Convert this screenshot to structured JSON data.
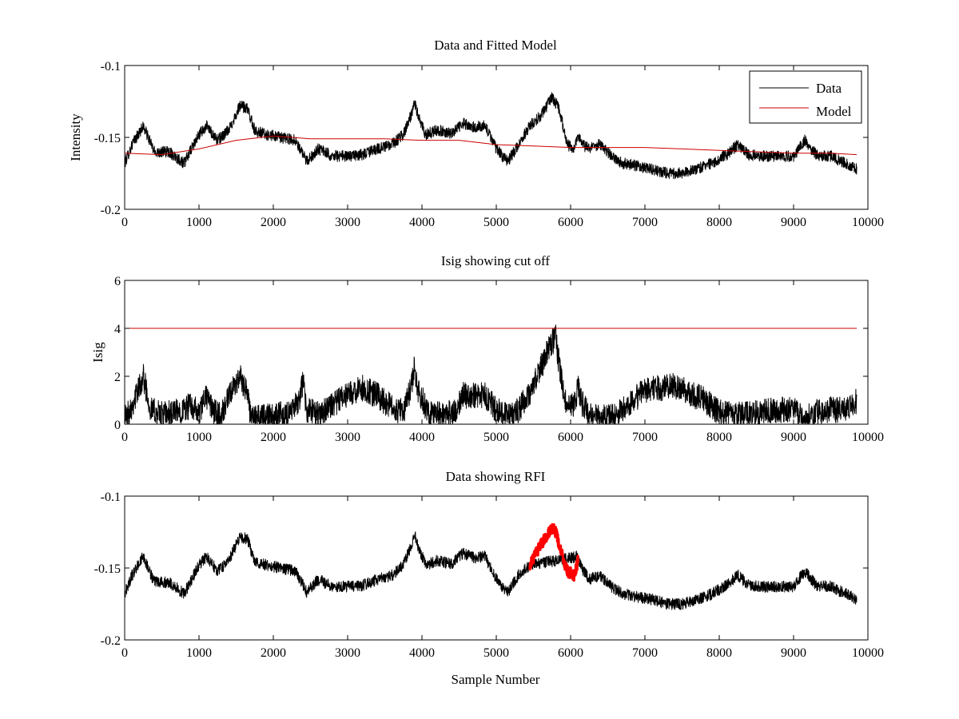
{
  "chart_data": [
    {
      "type": "line",
      "title": "Data and Fitted Model",
      "xlabel": "",
      "ylabel": "Intensity",
      "xlim": [
        0,
        10000
      ],
      "ylim": [
        -0.2,
        -0.1
      ],
      "x_ticks": [
        0,
        1000,
        2000,
        3000,
        4000,
        5000,
        6000,
        7000,
        8000,
        9000,
        10000
      ],
      "x_tick_labels": [
        "0",
        "1000",
        "2000",
        "3000",
        "4000",
        "5000",
        "6000",
        "7000",
        "8000",
        "9000",
        "10000"
      ],
      "y_ticks": [
        -0.2,
        -0.15,
        -0.1
      ],
      "y_tick_labels": [
        "-0.2",
        "-0.15",
        "-0.1"
      ],
      "legend": {
        "position": "top-right",
        "entries": [
          "Data",
          "Model"
        ]
      },
      "series": [
        {
          "name": "Data",
          "color": "#000000",
          "noise": 0.004,
          "x": [
            0,
            100,
            250,
            400,
            600,
            800,
            1000,
            1100,
            1250,
            1400,
            1550,
            1650,
            1750,
            1900,
            2100,
            2300,
            2450,
            2600,
            2800,
            3000,
            3200,
            3400,
            3600,
            3750,
            3850,
            3900,
            3950,
            4050,
            4200,
            4400,
            4550,
            4700,
            4850,
            5000,
            5150,
            5300,
            5450,
            5600,
            5750,
            5850,
            5950,
            6050,
            6100,
            6150,
            6250,
            6400,
            6550,
            6700,
            6900,
            7100,
            7300,
            7500,
            7700,
            7900,
            8100,
            8250,
            8400,
            8600,
            8800,
            9000,
            9150,
            9300,
            9500,
            9700,
            9850
          ],
          "y": [
            -0.168,
            -0.155,
            -0.142,
            -0.16,
            -0.16,
            -0.168,
            -0.148,
            -0.142,
            -0.152,
            -0.145,
            -0.128,
            -0.13,
            -0.145,
            -0.148,
            -0.15,
            -0.152,
            -0.167,
            -0.158,
            -0.163,
            -0.163,
            -0.162,
            -0.158,
            -0.155,
            -0.148,
            -0.135,
            -0.126,
            -0.135,
            -0.148,
            -0.145,
            -0.147,
            -0.14,
            -0.143,
            -0.142,
            -0.158,
            -0.167,
            -0.155,
            -0.142,
            -0.135,
            -0.122,
            -0.13,
            -0.155,
            -0.158,
            -0.148,
            -0.155,
            -0.158,
            -0.155,
            -0.163,
            -0.168,
            -0.17,
            -0.172,
            -0.175,
            -0.175,
            -0.172,
            -0.168,
            -0.162,
            -0.155,
            -0.162,
            -0.163,
            -0.163,
            -0.163,
            -0.152,
            -0.162,
            -0.163,
            -0.168,
            -0.172
          ]
        },
        {
          "name": "Model",
          "color": "#cc0000",
          "noise": 0,
          "x": [
            0,
            500,
            1000,
            1500,
            2000,
            2500,
            3000,
            3500,
            4000,
            4500,
            5000,
            5500,
            6000,
            6500,
            7000,
            7500,
            8000,
            8500,
            9000,
            9500,
            9850
          ],
          "y": [
            -0.161,
            -0.162,
            -0.158,
            -0.152,
            -0.149,
            -0.151,
            -0.151,
            -0.151,
            -0.152,
            -0.152,
            -0.155,
            -0.156,
            -0.157,
            -0.157,
            -0.157,
            -0.158,
            -0.159,
            -0.16,
            -0.161,
            -0.161,
            -0.162
          ]
        }
      ]
    },
    {
      "type": "line",
      "title": "Isig showing cut off",
      "xlabel": "",
      "ylabel": "Isig",
      "xlim": [
        0,
        10000
      ],
      "ylim": [
        0,
        6
      ],
      "x_ticks": [
        0,
        1000,
        2000,
        3000,
        4000,
        5000,
        6000,
        7000,
        8000,
        9000,
        10000
      ],
      "x_tick_labels": [
        "0",
        "1000",
        "2000",
        "3000",
        "4000",
        "5000",
        "6000",
        "7000",
        "8000",
        "9000",
        "10000"
      ],
      "y_ticks": [
        0,
        2,
        4,
        6
      ],
      "y_tick_labels": [
        "0",
        "2",
        "4",
        "6"
      ],
      "series": [
        {
          "name": "Isig",
          "color": "#000000",
          "noise": 0.55,
          "x": [
            0,
            100,
            250,
            350,
            500,
            700,
            900,
            1000,
            1100,
            1200,
            1300,
            1450,
            1550,
            1650,
            1700,
            1800,
            2000,
            2200,
            2350,
            2400,
            2450,
            2600,
            2800,
            3000,
            3200,
            3400,
            3600,
            3750,
            3850,
            3900,
            3950,
            4100,
            4300,
            4450,
            4550,
            4700,
            4850,
            5000,
            5150,
            5300,
            5450,
            5600,
            5750,
            5800,
            5850,
            5950,
            6050,
            6100,
            6150,
            6250,
            6400,
            6600,
            6800,
            7000,
            7200,
            7400,
            7600,
            7800,
            8000,
            8200,
            8400,
            8600,
            8800,
            9000,
            9150,
            9300,
            9500,
            9700,
            9850
          ],
          "y": [
            0.2,
            0.8,
            2.0,
            0.6,
            0.4,
            0.5,
            0.8,
            0.4,
            1.2,
            0.5,
            0.4,
            1.4,
            2.0,
            1.4,
            0.2,
            0.3,
            0.4,
            0.4,
            1.0,
            1.8,
            0.6,
            0.4,
            0.8,
            1.2,
            1.5,
            1.2,
            0.7,
            0.5,
            1.5,
            2.4,
            1.4,
            0.4,
            0.4,
            0.5,
            1.2,
            1.2,
            1.2,
            0.6,
            0.3,
            0.6,
            1.3,
            2.4,
            3.4,
            3.6,
            2.4,
            0.6,
            0.8,
            1.5,
            0.9,
            0.4,
            0.3,
            0.3,
            0.9,
            1.4,
            1.5,
            1.6,
            1.3,
            1.0,
            0.5,
            0.4,
            0.4,
            0.5,
            0.6,
            0.6,
            0.2,
            0.5,
            0.6,
            0.6,
            1.0
          ]
        },
        {
          "name": "Cut off",
          "color": "#cc0000",
          "noise": 0,
          "x": [
            0,
            9850
          ],
          "y": [
            4,
            4
          ]
        }
      ]
    },
    {
      "type": "line",
      "title": "Data showing RFI",
      "xlabel": "Sample Number",
      "ylabel": "",
      "xlim": [
        0,
        10000
      ],
      "ylim": [
        -0.2,
        -0.1
      ],
      "x_ticks": [
        0,
        1000,
        2000,
        3000,
        4000,
        5000,
        6000,
        7000,
        8000,
        9000,
        10000
      ],
      "x_tick_labels": [
        "0",
        "1000",
        "2000",
        "3000",
        "4000",
        "5000",
        "6000",
        "7000",
        "8000",
        "9000",
        "10000"
      ],
      "y_ticks": [
        -0.2,
        -0.15,
        -0.1
      ],
      "y_tick_labels": [
        "-0.2",
        "-0.15",
        "-0.1"
      ],
      "series": [
        {
          "name": "Data",
          "color": "#000000",
          "noise": 0.004,
          "x": [
            0,
            100,
            250,
            400,
            600,
            800,
            1000,
            1100,
            1250,
            1400,
            1550,
            1650,
            1750,
            1900,
            2100,
            2300,
            2450,
            2600,
            2800,
            3000,
            3200,
            3400,
            3600,
            3750,
            3850,
            3900,
            3950,
            4050,
            4200,
            4400,
            4550,
            4700,
            4850,
            5000,
            5150,
            5300,
            5450,
            6100,
            6150,
            6250,
            6400,
            6550,
            6700,
            6900,
            7100,
            7300,
            7500,
            7700,
            7900,
            8100,
            8250,
            8400,
            8600,
            8800,
            9000,
            9150,
            9300,
            9500,
            9700,
            9850
          ],
          "y": [
            -0.168,
            -0.155,
            -0.142,
            -0.16,
            -0.16,
            -0.168,
            -0.148,
            -0.142,
            -0.152,
            -0.145,
            -0.128,
            -0.13,
            -0.145,
            -0.148,
            -0.15,
            -0.152,
            -0.167,
            -0.158,
            -0.163,
            -0.163,
            -0.162,
            -0.158,
            -0.155,
            -0.148,
            -0.135,
            -0.126,
            -0.135,
            -0.148,
            -0.145,
            -0.147,
            -0.14,
            -0.143,
            -0.142,
            -0.158,
            -0.167,
            -0.155,
            -0.148,
            -0.142,
            -0.15,
            -0.158,
            -0.155,
            -0.163,
            -0.168,
            -0.17,
            -0.172,
            -0.175,
            -0.175,
            -0.172,
            -0.168,
            -0.162,
            -0.155,
            -0.162,
            -0.163,
            -0.163,
            -0.163,
            -0.152,
            -0.162,
            -0.163,
            -0.168,
            -0.172
          ]
        },
        {
          "name": "RFI",
          "color": "#ff0000",
          "noise": 0.004,
          "x": [
            5450,
            5550,
            5650,
            5750,
            5800,
            5850,
            5950,
            6050,
            6100
          ],
          "y": [
            -0.148,
            -0.138,
            -0.13,
            -0.122,
            -0.125,
            -0.135,
            -0.152,
            -0.155,
            -0.145
          ]
        }
      ]
    }
  ]
}
